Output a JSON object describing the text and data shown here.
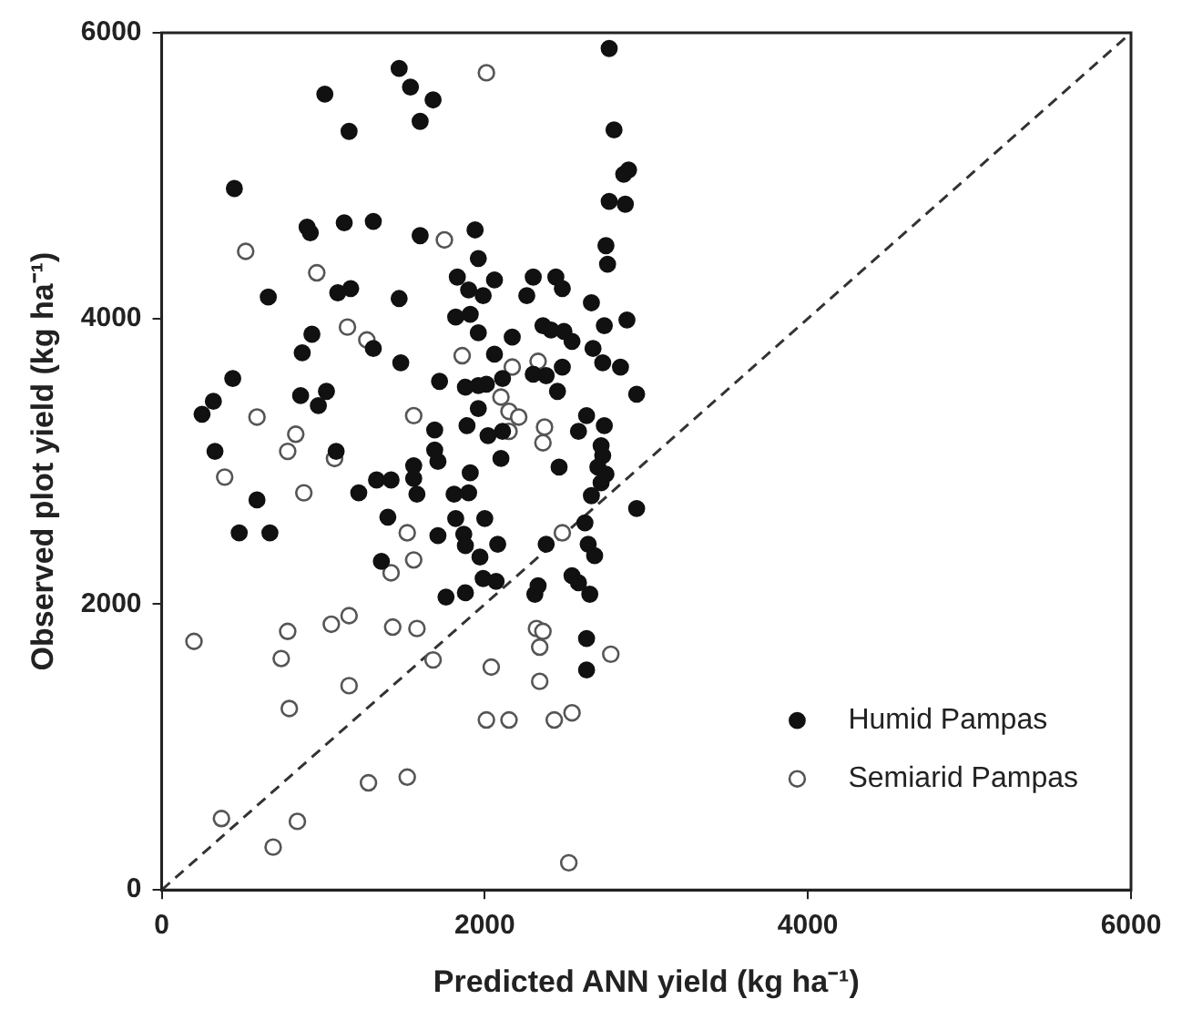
{
  "chart_data": {
    "type": "scatter",
    "xlabel": "Predicted ANN yield (kg ha⁻¹)",
    "ylabel": "Observed plot yield (kg ha⁻¹)",
    "xlim": [
      0,
      6000
    ],
    "ylim": [
      0,
      6000
    ],
    "xticks": [
      0,
      2000,
      4000,
      6000
    ],
    "yticks": [
      0,
      2000,
      4000,
      6000
    ],
    "grid": false,
    "legend": "bottom right",
    "marker": "circle",
    "series": [
      {
        "name": "Humid Pampas",
        "color": "#111111",
        "x": [
          2770,
          1470,
          1540,
          1010,
          1680,
          1600,
          1160,
          2800,
          2890,
          2860,
          450,
          2770,
          2870,
          900,
          920,
          1130,
          1310,
          1600,
          1940,
          2750,
          2760,
          1960,
          1830,
          2300,
          2440,
          2060,
          2480,
          1170,
          1090,
          660,
          1470,
          1900,
          1990,
          2260,
          2660,
          1820,
          1910,
          2880,
          2740,
          930,
          1960,
          2360,
          2410,
          2490,
          2170,
          1310,
          2540,
          870,
          2060,
          1480,
          2670,
          2730,
          2840,
          2480,
          2300,
          2380,
          440,
          1720,
          2110,
          2010,
          1960,
          1880,
          2450,
          1020,
          860,
          970,
          2940,
          250,
          320,
          1960,
          2630,
          1890,
          1690,
          2110,
          2020,
          2580,
          2740,
          330,
          1080,
          1690,
          1710,
          2720,
          2730,
          2100,
          2460,
          2700,
          1560,
          1560,
          1910,
          1330,
          1420,
          2750,
          2720,
          590,
          1220,
          1580,
          1810,
          1900,
          2660,
          2940,
          1400,
          1820,
          2000,
          480,
          670,
          1710,
          1870,
          1880,
          2080,
          2380,
          2620,
          2640,
          2680,
          1360,
          1970,
          1990,
          2070,
          2540,
          2580,
          2650,
          1760,
          1880,
          2310,
          2330,
          2630,
          2630
        ],
        "values": [
          5890,
          5750,
          5620,
          5570,
          5530,
          5380,
          5310,
          5320,
          5040,
          5010,
          4910,
          4820,
          4800,
          4640,
          4600,
          4670,
          4680,
          4580,
          4620,
          4510,
          4380,
          4420,
          4290,
          4290,
          4290,
          4270,
          4210,
          4210,
          4180,
          4150,
          4140,
          4200,
          4160,
          4160,
          4110,
          4010,
          4030,
          3990,
          3950,
          3890,
          3900,
          3950,
          3920,
          3910,
          3870,
          3790,
          3840,
          3760,
          3750,
          3690,
          3790,
          3690,
          3660,
          3660,
          3610,
          3600,
          3580,
          3560,
          3580,
          3540,
          3530,
          3520,
          3490,
          3490,
          3460,
          3390,
          3470,
          3330,
          3420,
          3370,
          3320,
          3250,
          3220,
          3210,
          3180,
          3210,
          3250,
          3070,
          3070,
          3080,
          3000,
          3110,
          3040,
          3020,
          2960,
          2960,
          2970,
          2880,
          2920,
          2870,
          2870,
          2910,
          2850,
          2730,
          2780,
          2770,
          2770,
          2780,
          2760,
          2670,
          2610,
          2600,
          2600,
          2500,
          2500,
          2480,
          2490,
          2410,
          2420,
          2420,
          2570,
          2420,
          2340,
          2300,
          2330,
          2180,
          2160,
          2200,
          2150,
          2070,
          2050,
          2080,
          2070,
          2130,
          1760,
          1540
        ]
      },
      {
        "name": "Semiarid Pampas",
        "color": "#555555",
        "x": [
          2010,
          1750,
          520,
          960,
          1150,
          1270,
          1860,
          2170,
          2330,
          2100,
          2150,
          2210,
          1560,
          590,
          2150,
          2370,
          2360,
          830,
          780,
          1070,
          390,
          880,
          1520,
          1560,
          2480,
          1420,
          200,
          780,
          1050,
          1160,
          1430,
          1580,
          2320,
          2360,
          2340,
          740,
          1680,
          2040,
          2780,
          1160,
          2340,
          790,
          2010,
          2150,
          2430,
          2540,
          1280,
          1520,
          370,
          840,
          690,
          2520
        ],
        "values": [
          5720,
          4550,
          4470,
          4320,
          3940,
          3850,
          3740,
          3660,
          3700,
          3450,
          3350,
          3310,
          3320,
          3310,
          3210,
          3240,
          3130,
          3190,
          3070,
          3020,
          2890,
          2780,
          2500,
          2310,
          2500,
          2220,
          1740,
          1810,
          1860,
          1920,
          1840,
          1830,
          1830,
          1810,
          1700,
          1620,
          1610,
          1560,
          1650,
          1430,
          1460,
          1270,
          1190,
          1190,
          1190,
          1240,
          750,
          790,
          500,
          480,
          300,
          190
        ]
      },
      {
        "type": "line",
        "color": "#333333",
        "line_style": "dashed",
        "marker": "none",
        "x": [
          0,
          6000
        ],
        "values": [
          0,
          6000
        ]
      }
    ]
  }
}
